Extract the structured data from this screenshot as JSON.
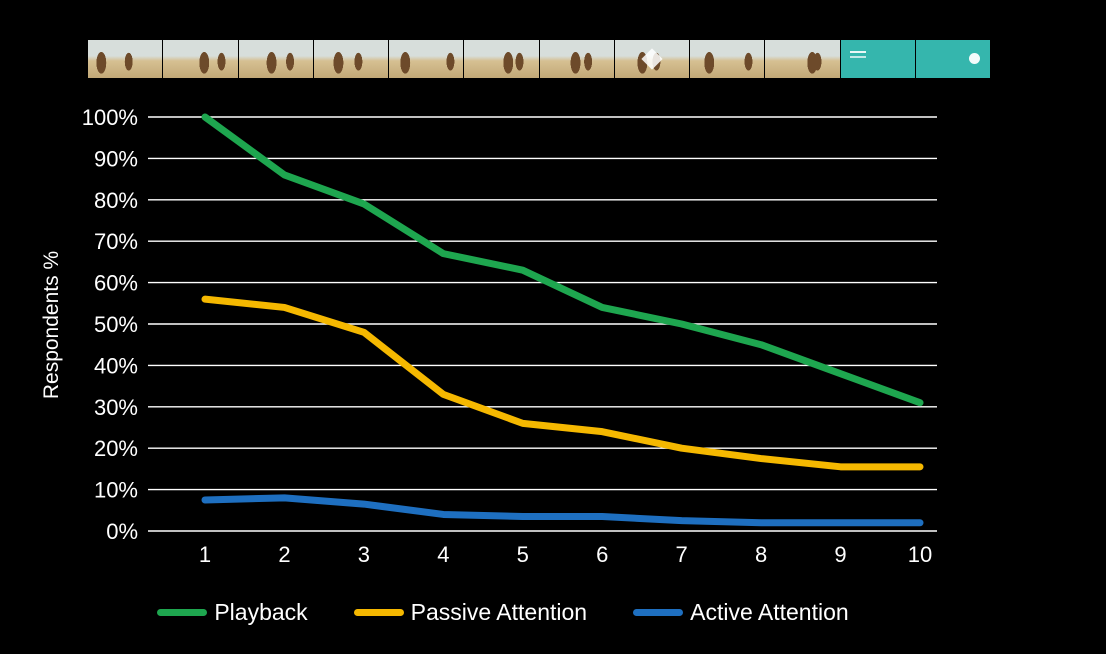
{
  "filmstrip": {
    "frame_kinds": [
      "scene",
      "scene",
      "scene",
      "scene",
      "scene",
      "scene",
      "scene",
      "scene",
      "scene",
      "scene",
      "endcard",
      "endcard"
    ],
    "scene_sky": "#d7dedb",
    "scene_sand": "#d6c092",
    "scene_sand_dark": "#c2a877",
    "figure_color": "#6d4a2a",
    "endcard_color": "#35b6ad"
  },
  "chart_data": {
    "type": "line",
    "title": "",
    "xlabel": "",
    "ylabel": "Respondents %",
    "x": [
      1,
      2,
      3,
      4,
      5,
      6,
      7,
      8,
      9,
      10
    ],
    "ylim": [
      0,
      100
    ],
    "ytick_step": 10,
    "ytick_suffix": "%",
    "grid": true,
    "legend_position": "bottom",
    "series": [
      {
        "name": "Playback",
        "color": "#1ea64f",
        "values": [
          100,
          86,
          79,
          67,
          63,
          54,
          50,
          45,
          38,
          31
        ]
      },
      {
        "name": "Passive Attention",
        "color": "#f5b800",
        "values": [
          56,
          54,
          48,
          33,
          26,
          24,
          20,
          17.5,
          15.5,
          15.5
        ]
      },
      {
        "name": "Active Attention",
        "color": "#1e6fc0",
        "values": [
          7.5,
          8,
          6.5,
          4,
          3.5,
          3.5,
          2.5,
          2,
          2,
          2
        ]
      }
    ]
  },
  "colors": {
    "background": "#000000",
    "grid": "#ffffff",
    "text": "#ffffff"
  }
}
